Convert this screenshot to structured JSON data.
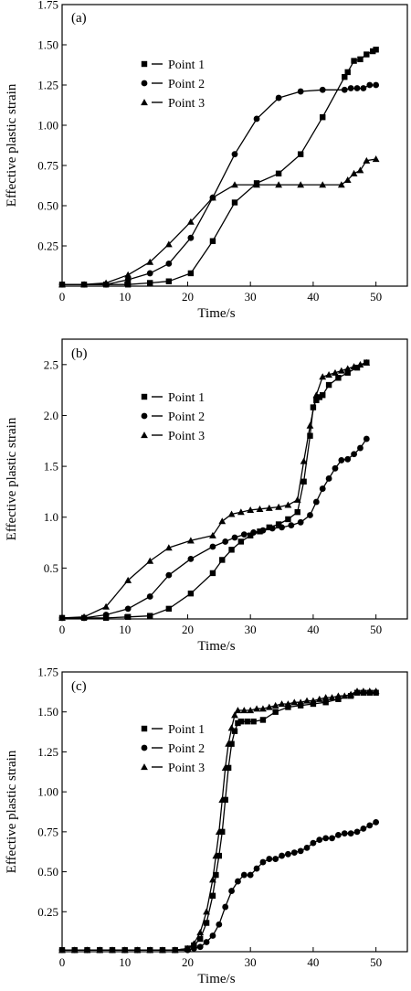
{
  "chart_data": [
    {
      "type": "line",
      "panel_label": "(a)",
      "xlabel": "Time/s",
      "ylabel": "Effective plastic strain",
      "xlim": [
        0,
        55
      ],
      "ylim": [
        0,
        1.75
      ],
      "xticks": [
        0,
        10,
        20,
        30,
        40,
        50
      ],
      "yticks": [
        0.25,
        0.5,
        0.75,
        1.0,
        1.25,
        1.5,
        1.75
      ],
      "ytick_labels": [
        "0.25",
        "0.50",
        "0.75",
        "1.00",
        "1.25",
        "1.50",
        "1.75"
      ],
      "legend_position": "top-center",
      "series": [
        {
          "name": "Point 1",
          "marker": "square",
          "x": [
            0,
            3.5,
            7,
            10.5,
            14,
            17,
            20.5,
            24,
            27.5,
            31,
            34.5,
            38,
            41.5,
            45,
            45.5,
            46.5,
            47.5,
            48.5,
            49.5,
            50
          ],
          "y": [
            0.01,
            0.01,
            0.01,
            0.01,
            0.02,
            0.03,
            0.08,
            0.28,
            0.52,
            0.64,
            0.7,
            0.82,
            1.05,
            1.3,
            1.33,
            1.4,
            1.41,
            1.44,
            1.46,
            1.47
          ]
        },
        {
          "name": "Point 2",
          "marker": "circle",
          "x": [
            0,
            3.5,
            7,
            10.5,
            14,
            17,
            20.5,
            24,
            27.5,
            31,
            34.5,
            38,
            41.5,
            45,
            46,
            47,
            48,
            49,
            50
          ],
          "y": [
            0.01,
            0.01,
            0.01,
            0.04,
            0.08,
            0.14,
            0.3,
            0.55,
            0.82,
            1.04,
            1.17,
            1.21,
            1.22,
            1.22,
            1.23,
            1.23,
            1.23,
            1.25,
            1.25
          ]
        },
        {
          "name": "Point 3",
          "marker": "triangle",
          "x": [
            0,
            3.5,
            7,
            10.5,
            14,
            17,
            20.5,
            24,
            27.5,
            31,
            34.5,
            38,
            41.5,
            44.5,
            45.5,
            46.5,
            47.5,
            48.5,
            50
          ],
          "y": [
            0.01,
            0.01,
            0.02,
            0.07,
            0.15,
            0.26,
            0.4,
            0.55,
            0.63,
            0.63,
            0.63,
            0.63,
            0.63,
            0.63,
            0.66,
            0.7,
            0.72,
            0.78,
            0.79
          ]
        }
      ]
    },
    {
      "type": "line",
      "panel_label": "(b)",
      "xlabel": "Time/s",
      "ylabel": "Effective plastic strain",
      "xlim": [
        0,
        55
      ],
      "ylim": [
        0,
        2.75
      ],
      "xticks": [
        0,
        10,
        20,
        30,
        40,
        50
      ],
      "yticks": [
        0.5,
        1.0,
        1.5,
        2.0,
        2.5
      ],
      "ytick_labels": [
        "0.5",
        "1.0",
        "1.5",
        "2.0",
        "2.5"
      ],
      "legend_position": "top-center",
      "series": [
        {
          "name": "Point 1",
          "marker": "square",
          "x": [
            0,
            3.5,
            7,
            10.5,
            14,
            17,
            20.5,
            24,
            25.5,
            27,
            28.5,
            30,
            31.5,
            33,
            34.5,
            36,
            37.5,
            38.5,
            39.5,
            40,
            40.5,
            41,
            41.5,
            42.5,
            44,
            45.5,
            47,
            48.5
          ],
          "y": [
            0.01,
            0.01,
            0.01,
            0.02,
            0.03,
            0.1,
            0.25,
            0.45,
            0.58,
            0.68,
            0.76,
            0.82,
            0.86,
            0.9,
            0.93,
            0.98,
            1.05,
            1.35,
            1.8,
            2.08,
            2.15,
            2.18,
            2.2,
            2.3,
            2.37,
            2.42,
            2.47,
            2.52
          ]
        },
        {
          "name": "Point 2",
          "marker": "circle",
          "x": [
            0,
            3.5,
            7,
            10.5,
            14,
            17,
            20.5,
            24,
            26,
            27.5,
            29,
            30.5,
            32,
            33.5,
            35,
            36.5,
            38,
            39.5,
            40.5,
            41.5,
            42.5,
            43.5,
            44.5,
            45.5,
            46.5,
            47.5,
            48.5
          ],
          "y": [
            0.01,
            0.01,
            0.04,
            0.1,
            0.22,
            0.43,
            0.59,
            0.71,
            0.76,
            0.8,
            0.83,
            0.85,
            0.87,
            0.89,
            0.9,
            0.92,
            0.95,
            1.02,
            1.15,
            1.28,
            1.38,
            1.48,
            1.56,
            1.57,
            1.62,
            1.68,
            1.77
          ]
        },
        {
          "name": "Point 3",
          "marker": "triangle",
          "x": [
            0,
            3.5,
            7,
            10.5,
            14,
            17,
            20.5,
            24,
            25.5,
            27,
            28.5,
            30,
            31.5,
            33,
            34.5,
            36,
            37.5,
            38.5,
            39.5,
            40.5,
            41.5,
            42.5,
            43.5,
            44.5,
            45.5,
            46.5,
            47.5,
            48.5
          ],
          "y": [
            0.01,
            0.02,
            0.12,
            0.38,
            0.57,
            0.7,
            0.77,
            0.82,
            0.96,
            1.03,
            1.05,
            1.07,
            1.08,
            1.09,
            1.1,
            1.12,
            1.17,
            1.55,
            1.9,
            2.2,
            2.38,
            2.4,
            2.42,
            2.44,
            2.46,
            2.48,
            2.5,
            2.52
          ]
        }
      ]
    },
    {
      "type": "line",
      "panel_label": "(c)",
      "xlabel": "Time/s",
      "ylabel": "Effective plastic strain",
      "xlim": [
        0,
        55
      ],
      "ylim": [
        0,
        1.75
      ],
      "xticks": [
        0,
        10,
        20,
        30,
        40,
        50
      ],
      "yticks": [
        0.25,
        0.5,
        0.75,
        1.0,
        1.25,
        1.5,
        1.75
      ],
      "ytick_labels": [
        "0.25",
        "0.50",
        "0.75",
        "1.00",
        "1.25",
        "1.50",
        "1.75"
      ],
      "legend_position": "top-center",
      "series": [
        {
          "name": "Point 1",
          "marker": "square",
          "x": [
            0,
            2,
            4,
            6,
            8,
            10,
            12,
            14,
            16,
            18,
            20,
            21,
            22,
            23,
            24,
            24.5,
            25,
            25.5,
            26,
            26.5,
            27,
            27.5,
            28,
            28.5,
            29.5,
            30.5,
            32,
            34,
            36,
            38,
            40,
            42,
            44,
            46,
            47,
            48,
            49,
            50
          ],
          "y": [
            0.01,
            0.01,
            0.01,
            0.01,
            0.01,
            0.01,
            0.01,
            0.01,
            0.01,
            0.01,
            0.02,
            0.04,
            0.08,
            0.18,
            0.35,
            0.48,
            0.6,
            0.75,
            0.95,
            1.15,
            1.3,
            1.38,
            1.43,
            1.44,
            1.44,
            1.44,
            1.45,
            1.5,
            1.53,
            1.54,
            1.55,
            1.56,
            1.58,
            1.6,
            1.62,
            1.62,
            1.62,
            1.62
          ]
        },
        {
          "name": "Point 2",
          "marker": "circle",
          "x": [
            0,
            2,
            4,
            6,
            8,
            10,
            12,
            14,
            16,
            18,
            20,
            21,
            22,
            23,
            24,
            25,
            26,
            27,
            28,
            29,
            30,
            31,
            32,
            33,
            34,
            35,
            36,
            37,
            38,
            39,
            40,
            41,
            42,
            43,
            44,
            45,
            46,
            47,
            48,
            49,
            50
          ],
          "y": [
            0.01,
            0.01,
            0.01,
            0.01,
            0.01,
            0.01,
            0.01,
            0.01,
            0.01,
            0.01,
            0.01,
            0.02,
            0.03,
            0.06,
            0.1,
            0.17,
            0.28,
            0.38,
            0.44,
            0.48,
            0.48,
            0.52,
            0.56,
            0.58,
            0.58,
            0.6,
            0.61,
            0.62,
            0.63,
            0.65,
            0.68,
            0.7,
            0.71,
            0.71,
            0.73,
            0.74,
            0.74,
            0.75,
            0.77,
            0.79,
            0.81
          ]
        },
        {
          "name": "Point 3",
          "marker": "triangle",
          "x": [
            0,
            2,
            4,
            6,
            8,
            10,
            12,
            14,
            16,
            18,
            20,
            21,
            22,
            23,
            24,
            24.5,
            25,
            25.5,
            26,
            26.5,
            27,
            27.5,
            28,
            29,
            30,
            31,
            32,
            33,
            34,
            35,
            36,
            37,
            38,
            39,
            40,
            41,
            42,
            43,
            44,
            45,
            46,
            47,
            48,
            49,
            50
          ],
          "y": [
            0.01,
            0.01,
            0.01,
            0.01,
            0.01,
            0.01,
            0.01,
            0.01,
            0.01,
            0.01,
            0.02,
            0.05,
            0.12,
            0.25,
            0.45,
            0.6,
            0.75,
            0.95,
            1.15,
            1.3,
            1.4,
            1.48,
            1.51,
            1.51,
            1.51,
            1.52,
            1.52,
            1.53,
            1.54,
            1.55,
            1.55,
            1.56,
            1.56,
            1.57,
            1.57,
            1.58,
            1.59,
            1.59,
            1.6,
            1.6,
            1.61,
            1.63,
            1.63,
            1.63,
            1.63
          ]
        }
      ]
    }
  ]
}
